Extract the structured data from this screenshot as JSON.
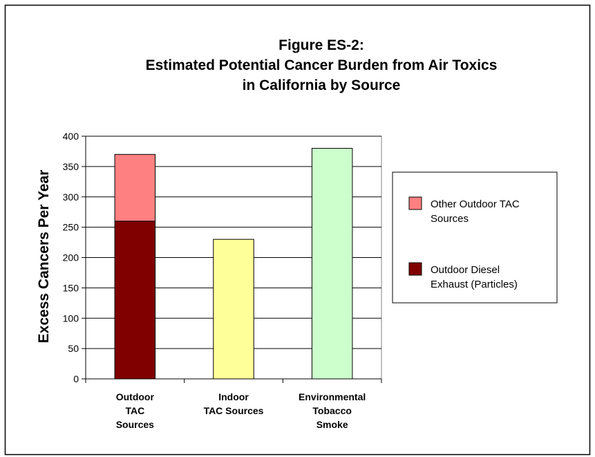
{
  "chart_data": {
    "type": "bar",
    "stacked": true,
    "title_lines": [
      "Figure ES-2:",
      "Estimated Potential Cancer Burden from Air Toxics",
      "in California by Source"
    ],
    "ylabel": "Excess Cancers Per Year",
    "xlabel": "",
    "ylim": [
      0,
      400
    ],
    "y_ticks": [
      0,
      50,
      100,
      150,
      200,
      250,
      300,
      350,
      400
    ],
    "grid": true,
    "legend_position": "right",
    "categories": [
      [
        "Outdoor",
        "TAC",
        "Sources"
      ],
      [
        "Indoor",
        "TAC Sources"
      ],
      [
        "Environmental",
        "Tobacco",
        "Smoke"
      ]
    ],
    "bars": [
      {
        "segments": [
          {
            "value": 260,
            "color": "#800000"
          },
          {
            "value": 110,
            "color": "#ff8080"
          }
        ]
      },
      {
        "segments": [
          {
            "value": 230,
            "color": "#ffff99"
          }
        ]
      },
      {
        "segments": [
          {
            "value": 380,
            "color": "#ccffcc"
          }
        ]
      }
    ],
    "legend": [
      {
        "label_lines": [
          "Other Outdoor TAC",
          "Sources"
        ],
        "color": "#ff8080"
      },
      {
        "label_lines": [
          "Outdoor Diesel",
          "Exhaust (Particles)"
        ],
        "color": "#800000"
      }
    ]
  }
}
